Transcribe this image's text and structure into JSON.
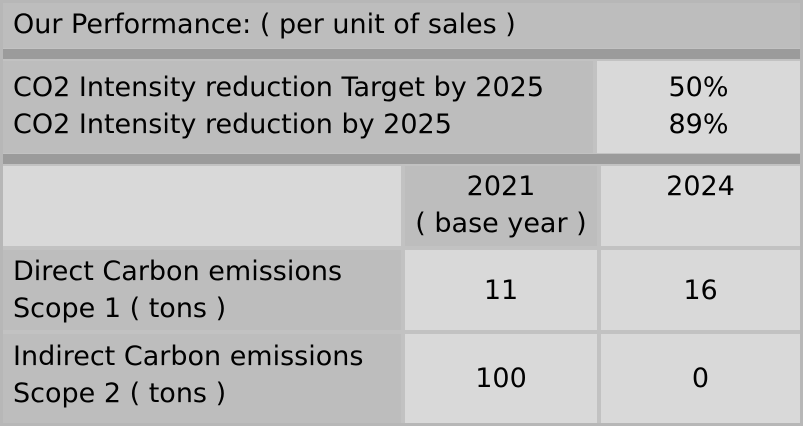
{
  "header": {
    "title": "Our Performance:  ( per unit of sales )"
  },
  "intensity": {
    "rows": [
      {
        "label": "CO2 Intensity reduction Target by 2025",
        "value": "50%"
      },
      {
        "label": "CO2 Intensity reduction by 2025",
        "value": "89%"
      }
    ]
  },
  "emissions": {
    "columns": [
      {
        "line1": "2021",
        "line2": "( base year )"
      },
      {
        "line1": "2024",
        "line2": ""
      }
    ],
    "rows": [
      {
        "line1": "Direct Carbon emissions",
        "line2": "Scope 1 ( tons )",
        "values": [
          "11",
          "16"
        ]
      },
      {
        "line1": "Indirect Carbon emissions",
        "line2": "Scope 2 ( tons )",
        "values": [
          "100",
          "0"
        ]
      }
    ]
  }
}
